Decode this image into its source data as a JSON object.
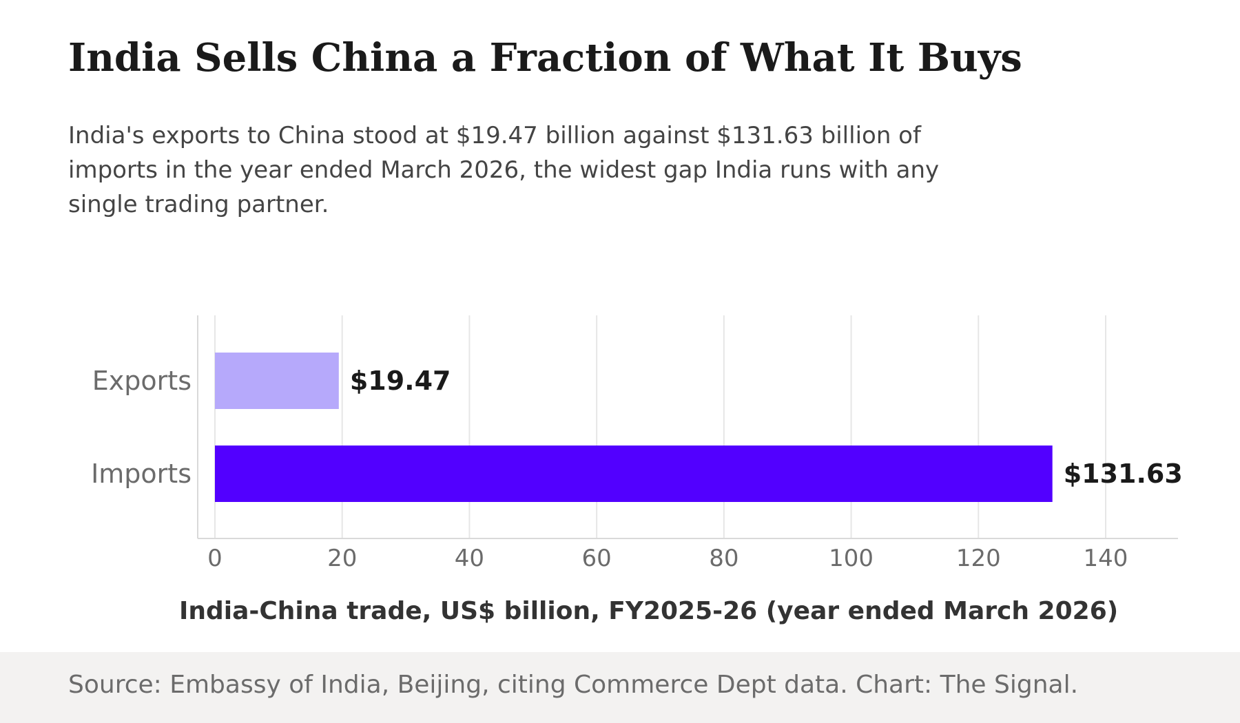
{
  "header": {
    "title": "India Sells China a Fraction of What It Buys",
    "subtitle": "India's exports to China stood at $19.47 billion against $131.63 billion of imports in the year ended March 2026, the widest gap India runs with any single trading partner."
  },
  "chart_data": {
    "type": "bar",
    "orientation": "horizontal",
    "categories": [
      "Exports",
      "Imports"
    ],
    "values": [
      19.47,
      131.63
    ],
    "value_labels": [
      "$19.47",
      "$131.63"
    ],
    "colors": [
      "#b6a9fb",
      "#5200ff"
    ],
    "xlabel": "India-China trade, US$ billion, FY2025-26 (year ended March 2026)",
    "ylabel": "",
    "xlim": [
      0,
      150
    ],
    "xticks": [
      0,
      20,
      40,
      60,
      80,
      100,
      120,
      140
    ],
    "grid": "vertical",
    "legend": "none"
  },
  "footer": {
    "source": "Source: Embassy of India, Beijing, citing Commerce Dept data. Chart: The Signal."
  }
}
